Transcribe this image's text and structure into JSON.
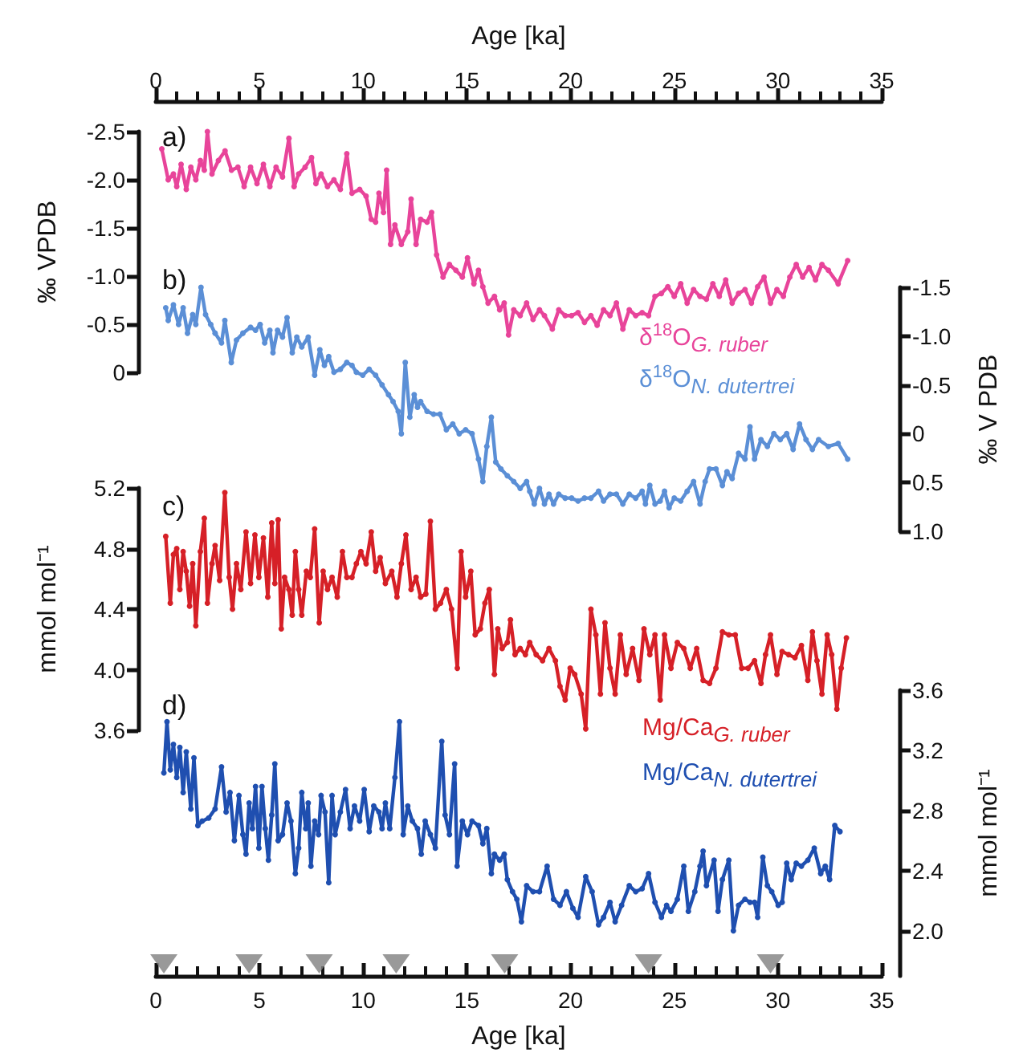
{
  "chart_data": [
    {
      "type": "line",
      "xlabel": "Age [ka]",
      "xlim": [
        0,
        35
      ],
      "xticks": [
        0,
        5,
        10,
        15,
        20,
        25,
        30,
        35
      ],
      "ylabel": "‰ VPDB",
      "ylim": [
        0,
        -2.5
      ],
      "yticks": [
        -2.5,
        {
          "value": -2,
          "label": "-2.0"
        },
        -1.5,
        {
          "value": -1,
          "label": "-1.0"
        },
        -0.5,
        0
      ],
      "annotations": [
        "a)"
      ],
      "marker": "circle",
      "line_style": "solid",
      "series": [
        {
          "name": "δ$^{18}$O$_{G. ruber}$",
          "color": "#e8449a",
          "x": [
            0.29,
            0.6,
            0.85,
            1.01,
            1.22,
            1.47,
            1.69,
            1.93,
            2.15,
            2.34,
            2.49,
            2.71,
            3.02,
            3.34,
            3.65,
            3.96,
            4.26,
            4.57,
            4.88,
            5.19,
            5.5,
            5.8,
            6.11,
            6.42,
            6.67,
            6.89,
            7.2,
            7.51,
            7.72,
            7.97,
            8.28,
            8.59,
            8.9,
            9.21,
            9.46,
            9.83,
            10.14,
            10.39,
            10.6,
            10.76,
            10.98,
            11.13,
            11.32,
            11.53,
            11.84,
            12.15,
            12.31,
            12.55,
            12.77,
            13.08,
            13.3,
            13.54,
            13.85,
            14.16,
            14.47,
            14.78,
            15.03,
            15.34,
            15.56,
            15.77,
            16.02,
            16.33,
            16.58,
            16.8,
            17.01,
            17.26,
            17.57,
            17.88,
            18.19,
            18.5,
            18.74,
            19.12,
            19.43,
            19.74,
            20.05,
            20.36,
            20.67,
            20.98,
            21.28,
            21.59,
            21.9,
            22.21,
            22.52,
            22.83,
            23.14,
            23.45,
            23.76,
            24.07,
            24.38,
            24.69,
            25.0,
            25.31,
            25.62,
            25.93,
            26.24,
            26.55,
            26.86,
            27.17,
            27.48,
            27.79,
            28.1,
            28.41,
            28.72,
            29.02,
            29.33,
            29.64,
            29.95,
            30.26,
            30.57,
            30.88,
            31.19,
            31.5,
            31.81,
            32.12,
            32.43,
            32.9,
            33.36
          ],
          "values": [
            -2.32,
            -2.0,
            -2.06,
            -1.93,
            -2.16,
            -1.9,
            -2.13,
            -2.0,
            -2.2,
            -2.1,
            -2.5,
            -2.06,
            -2.2,
            -2.3,
            -2.1,
            -2.13,
            -1.93,
            -2.13,
            -1.96,
            -2.16,
            -1.93,
            -2.13,
            -2.03,
            -2.43,
            -1.93,
            -2.06,
            -2.13,
            -2.23,
            -1.96,
            -2.06,
            -1.93,
            -2.0,
            -1.9,
            -2.27,
            -1.86,
            -1.9,
            -1.83,
            -1.59,
            -1.56,
            -1.86,
            -1.66,
            -2.1,
            -1.33,
            -1.53,
            -1.33,
            -1.46,
            -1.8,
            -1.33,
            -1.59,
            -1.56,
            -1.66,
            -1.22,
            -0.99,
            -1.12,
            -1.06,
            -0.99,
            -1.19,
            -0.92,
            -1.06,
            -0.89,
            -0.72,
            -0.79,
            -0.65,
            -0.72,
            -0.39,
            -0.65,
            -0.59,
            -0.72,
            -0.55,
            -0.65,
            -0.59,
            -0.45,
            -0.65,
            -0.59,
            -0.59,
            -0.62,
            -0.52,
            -0.59,
            -0.49,
            -0.65,
            -0.59,
            -0.72,
            -0.45,
            -0.65,
            -0.59,
            -0.62,
            -0.59,
            -0.79,
            -0.82,
            -0.89,
            -0.79,
            -0.92,
            -0.72,
            -0.86,
            -0.79,
            -0.76,
            -0.92,
            -0.79,
            -0.96,
            -0.72,
            -0.82,
            -0.86,
            -0.72,
            -0.89,
            -0.99,
            -0.72,
            -0.86,
            -0.79,
            -0.99,
            -1.12,
            -0.99,
            -1.09,
            -0.96,
            -1.12,
            -1.06,
            -0.92,
            -1.16
          ]
        }
      ]
    },
    {
      "type": "line",
      "xlim": [
        0,
        35
      ],
      "tick_labels": "y",
      "ylabel": "‰ V PDB",
      "ylim": [
        1,
        -1.5
      ],
      "yticks": [
        -1.5,
        {
          "value": -1,
          "label": "-1.0"
        },
        -0.5,
        0,
        0.5,
        {
          "value": 1,
          "label": "1.0"
        }
      ],
      "annotations": [
        "b)"
      ],
      "marker": "circle",
      "line_style": "solid",
      "series": [
        {
          "name": "δ$^{18}$O$_{N. dutertrei}$",
          "color": "#5b8fd6",
          "x": [
            0.48,
            0.6,
            0.85,
            1.1,
            1.32,
            1.53,
            1.78,
            1.93,
            2.18,
            2.4,
            2.65,
            2.86,
            3.17,
            3.33,
            3.64,
            3.89,
            4.2,
            4.57,
            4.81,
            5.03,
            5.25,
            5.5,
            5.65,
            5.87,
            6.11,
            6.33,
            6.58,
            6.8,
            7.04,
            7.35,
            7.66,
            7.91,
            8.13,
            8.34,
            8.59,
            8.9,
            9.21,
            9.46,
            9.67,
            9.98,
            10.29,
            10.6,
            10.91,
            11.22,
            11.44,
            11.69,
            11.84,
            12.03,
            12.25,
            12.46,
            12.62,
            12.77,
            13.08,
            13.39,
            13.7,
            14.01,
            14.32,
            14.63,
            14.94,
            15.25,
            15.56,
            15.77,
            15.96,
            16.18,
            16.39,
            16.64,
            16.95,
            17.26,
            17.57,
            17.88,
            18.03,
            18.25,
            18.5,
            18.74,
            18.96,
            19.18,
            19.43,
            19.74,
            20.05,
            20.36,
            20.67,
            20.98,
            21.35,
            21.59,
            21.9,
            22.21,
            22.52,
            22.83,
            23.14,
            23.45,
            23.61,
            23.82,
            24.07,
            24.32,
            24.53,
            24.75,
            25.0,
            25.31,
            25.62,
            25.93,
            26.24,
            26.49,
            26.7,
            27.01,
            27.32,
            27.54,
            27.79,
            28.1,
            28.41,
            28.65,
            28.87,
            29.18,
            29.49,
            29.8,
            30.11,
            30.42,
            30.73,
            31.04,
            31.35,
            31.66,
            31.96,
            32.43,
            32.9,
            33.36
          ],
          "values": [
            -1.29,
            -1.16,
            -1.32,
            -1.12,
            -1.29,
            -1.03,
            -1.22,
            -1.12,
            -1.5,
            -1.22,
            -1.12,
            -1.03,
            -0.93,
            -1.16,
            -0.73,
            -0.96,
            -1.03,
            -1.09,
            -1.06,
            -1.12,
            -0.93,
            -1.06,
            -0.83,
            -1.06,
            -0.99,
            -1.19,
            -0.83,
            -0.99,
            -0.89,
            -0.99,
            -0.6,
            -0.86,
            -0.7,
            -0.79,
            -0.63,
            -0.66,
            -0.73,
            -0.7,
            -0.63,
            -0.6,
            -0.66,
            -0.6,
            -0.5,
            -0.4,
            -0.33,
            -0.23,
            0.0,
            -0.73,
            -0.17,
            -0.4,
            -0.27,
            -0.33,
            -0.23,
            -0.2,
            -0.2,
            -0.04,
            -0.1,
            0.0,
            -0.04,
            0.0,
            0.26,
            0.49,
            0.13,
            -0.17,
            0.29,
            0.36,
            0.43,
            0.49,
            0.56,
            0.49,
            0.59,
            0.72,
            0.56,
            0.72,
            0.62,
            0.72,
            0.62,
            0.66,
            0.66,
            0.69,
            0.66,
            0.66,
            0.59,
            0.69,
            0.62,
            0.62,
            0.72,
            0.62,
            0.66,
            0.59,
            0.72,
            0.53,
            0.72,
            0.69,
            0.59,
            0.76,
            0.66,
            0.69,
            0.59,
            0.49,
            0.72,
            0.49,
            0.36,
            0.36,
            0.53,
            0.39,
            0.46,
            0.2,
            0.26,
            -0.07,
            0.26,
            0.06,
            0.13,
            0.0,
            0.06,
            0.0,
            0.16,
            -0.1,
            0.06,
            0.16,
            0.06,
            0.13,
            0.1,
            0.26
          ]
        }
      ]
    },
    {
      "type": "line",
      "xlim": [
        0,
        35
      ],
      "tick_labels": "y",
      "ylabel": "mmol mol⁻¹",
      "ylim": [
        3.6,
        5.2
      ],
      "yticks": [
        3.6,
        {
          "value": 4,
          "label": "4.0"
        },
        4.4,
        4.8,
        5.2
      ],
      "annotations": [
        "c)"
      ],
      "marker": "circle",
      "line_style": "solid",
      "series": [
        {
          "name": "Mg/Ca$_{G. ruber}$",
          "color": "#d62027",
          "x": [
            0.48,
            0.7,
            0.85,
            1.01,
            1.16,
            1.32,
            1.47,
            1.63,
            1.78,
            1.93,
            2.15,
            2.34,
            2.49,
            2.71,
            2.86,
            3.08,
            3.33,
            3.54,
            3.7,
            3.89,
            4.1,
            4.35,
            4.57,
            4.78,
            4.97,
            5.19,
            5.4,
            5.59,
            5.74,
            5.9,
            6.05,
            6.21,
            6.42,
            6.58,
            6.73,
            6.89,
            7.04,
            7.26,
            7.45,
            7.66,
            7.88,
            8.07,
            8.28,
            8.5,
            8.75,
            9.0,
            9.21,
            9.46,
            9.67,
            9.89,
            10.14,
            10.39,
            10.6,
            10.82,
            11.07,
            11.38,
            11.63,
            11.84,
            12.06,
            12.31,
            12.55,
            12.77,
            13.02,
            13.24,
            13.48,
            13.73,
            14.01,
            14.26,
            14.54,
            14.72,
            14.94,
            15.19,
            15.4,
            15.65,
            15.87,
            16.08,
            16.33,
            16.49,
            16.7,
            16.95,
            17.1,
            17.32,
            17.57,
            17.82,
            18.03,
            18.34,
            18.65,
            18.96,
            19.27,
            19.49,
            19.74,
            19.98,
            20.2,
            20.51,
            20.73,
            20.98,
            21.22,
            21.44,
            21.66,
            21.9,
            22.15,
            22.4,
            22.68,
            22.99,
            23.3,
            23.54,
            23.82,
            24.07,
            24.32,
            24.53,
            24.84,
            25.15,
            25.46,
            25.77,
            26.08,
            26.39,
            26.7,
            27.01,
            27.32,
            27.63,
            27.94,
            28.25,
            28.56,
            28.87,
            29.18,
            29.4,
            29.64,
            29.95,
            30.2,
            30.51,
            30.82,
            31.13,
            31.44,
            31.66,
            31.88,
            32.12,
            32.37,
            32.59,
            32.84,
            33.05,
            33.3
          ],
          "values": [
            4.88,
            4.44,
            4.76,
            4.8,
            4.53,
            4.78,
            4.65,
            4.42,
            4.7,
            4.29,
            4.78,
            5.0,
            4.44,
            4.7,
            4.82,
            4.59,
            5.17,
            4.61,
            4.4,
            4.7,
            4.53,
            4.91,
            4.57,
            4.89,
            4.61,
            4.87,
            4.48,
            4.97,
            4.57,
            4.99,
            4.27,
            4.61,
            4.53,
            4.36,
            4.78,
            4.53,
            4.36,
            4.65,
            4.61,
            4.93,
            4.31,
            4.65,
            4.53,
            4.61,
            4.48,
            4.78,
            4.61,
            4.61,
            4.7,
            4.78,
            4.7,
            4.91,
            4.65,
            4.74,
            4.57,
            4.65,
            4.48,
            4.7,
            4.89,
            4.53,
            4.61,
            4.48,
            4.5,
            4.98,
            4.4,
            4.44,
            4.53,
            4.4,
            4.01,
            4.78,
            4.48,
            4.65,
            4.23,
            4.27,
            4.44,
            4.53,
            3.97,
            4.27,
            4.14,
            4.18,
            4.33,
            4.1,
            4.14,
            4.1,
            4.18,
            4.1,
            4.06,
            4.14,
            4.06,
            3.89,
            3.8,
            4.01,
            3.97,
            3.84,
            3.61,
            4.4,
            4.23,
            3.84,
            4.31,
            4.01,
            3.84,
            4.23,
            3.97,
            4.14,
            3.93,
            4.27,
            4.1,
            4.23,
            3.8,
            4.23,
            4.01,
            4.18,
            4.14,
            4.01,
            4.14,
            3.93,
            3.91,
            4.01,
            4.25,
            4.23,
            4.23,
            4.01,
            4.01,
            4.06,
            3.91,
            4.1,
            4.23,
            3.97,
            4.12,
            4.1,
            4.08,
            4.16,
            3.93,
            4.25,
            4.06,
            3.84,
            4.23,
            4.1,
            3.74,
            4.01,
            4.21
          ]
        }
      ]
    },
    {
      "type": "line",
      "xlabel": "Age [ka]",
      "xlim": [
        0,
        35
      ],
      "xticks": [
        0,
        5,
        10,
        15,
        20,
        25,
        30,
        35
      ],
      "ylabel": "mmol mol⁻¹",
      "ylim": [
        1.7,
        3.6
      ],
      "yticks": [
        {
          "value": 2,
          "label": "2.0"
        },
        2.4,
        2.8,
        3.2,
        3.6
      ],
      "annotations": [
        "d)"
      ],
      "marker": "circle",
      "line_style": "solid",
      "series": [
        {
          "name": "Mg/Ca$_{N. dutertrei}$",
          "color": "#1f4fb0",
          "x": [
            0.39,
            0.54,
            0.7,
            0.85,
            1.01,
            1.16,
            1.32,
            1.47,
            1.69,
            1.84,
            2.03,
            2.24,
            2.55,
            2.86,
            3.17,
            3.39,
            3.58,
            3.79,
            4.01,
            4.2,
            4.35,
            4.5,
            4.66,
            4.81,
            4.97,
            5.12,
            5.28,
            5.43,
            5.59,
            5.74,
            5.9,
            6.11,
            6.33,
            6.52,
            6.73,
            6.89,
            7.04,
            7.23,
            7.35,
            7.48,
            7.66,
            7.85,
            7.97,
            8.16,
            8.34,
            8.5,
            8.65,
            8.9,
            9.15,
            9.37,
            9.58,
            9.83,
            10.05,
            10.29,
            10.51,
            10.76,
            10.91,
            11.07,
            11.28,
            11.53,
            11.75,
            11.93,
            12.15,
            12.37,
            12.62,
            12.8,
            12.99,
            13.24,
            13.48,
            13.79,
            13.95,
            14.16,
            14.41,
            14.53,
            14.78,
            15.03,
            15.25,
            15.56,
            15.77,
            15.96,
            16.18,
            16.33,
            16.58,
            16.8,
            16.95,
            17.2,
            17.41,
            17.63,
            17.88,
            18.19,
            18.5,
            18.87,
            19.18,
            19.49,
            19.8,
            20.11,
            20.36,
            20.73,
            21.04,
            21.35,
            21.59,
            21.9,
            22.15,
            22.46,
            22.83,
            23.14,
            23.45,
            23.76,
            24.07,
            24.38,
            24.63,
            24.84,
            25.15,
            25.46,
            25.68,
            25.99,
            26.24,
            26.39,
            26.55,
            26.92,
            27.11,
            27.32,
            27.63,
            27.85,
            28.1,
            28.41,
            28.65,
            28.87,
            29.02,
            29.27,
            29.49,
            29.7,
            30.01,
            30.2,
            30.42,
            30.64,
            30.88,
            31.13,
            31.44,
            31.75,
            32.06,
            32.28,
            32.49,
            32.74,
            32.99
          ],
          "values": [
            3.05,
            3.39,
            3.07,
            3.24,
            3.02,
            3.22,
            2.92,
            3.19,
            2.81,
            3.15,
            2.7,
            2.73,
            2.75,
            2.81,
            3.09,
            2.79,
            2.92,
            2.6,
            2.9,
            2.64,
            2.51,
            2.85,
            2.68,
            2.96,
            2.55,
            2.96,
            2.68,
            2.47,
            2.77,
            3.11,
            2.6,
            2.64,
            2.85,
            2.73,
            2.38,
            2.55,
            2.92,
            2.68,
            2.85,
            2.43,
            2.73,
            2.64,
            2.9,
            2.79,
            2.32,
            2.9,
            2.64,
            2.79,
            2.94,
            2.68,
            2.83,
            2.73,
            2.94,
            2.66,
            2.83,
            2.79,
            2.68,
            2.85,
            2.68,
            3.02,
            3.39,
            2.64,
            2.83,
            2.73,
            2.68,
            2.51,
            2.73,
            2.64,
            2.55,
            3.26,
            2.77,
            2.64,
            3.11,
            2.43,
            2.73,
            2.64,
            2.73,
            2.7,
            2.58,
            2.68,
            2.38,
            2.51,
            2.47,
            2.51,
            2.34,
            2.26,
            2.21,
            2.06,
            2.3,
            2.26,
            2.26,
            2.43,
            2.21,
            2.17,
            2.26,
            2.15,
            2.09,
            2.36,
            2.26,
            2.04,
            2.09,
            2.19,
            2.06,
            2.17,
            2.3,
            2.26,
            2.28,
            2.38,
            2.19,
            2.09,
            2.17,
            2.13,
            2.21,
            2.43,
            2.13,
            2.26,
            2.43,
            2.53,
            2.3,
            2.47,
            2.13,
            2.34,
            2.47,
            2.0,
            2.17,
            2.21,
            2.19,
            2.19,
            2.09,
            2.49,
            2.3,
            2.26,
            2.17,
            2.19,
            2.45,
            2.34,
            2.45,
            2.43,
            2.47,
            2.55,
            2.38,
            2.43,
            2.34,
            2.7,
            2.66
          ]
        },
        {
          "type": "scatter",
          "marker": "triangle",
          "color": "#808080",
          "x": [
            0.39,
            4.5,
            7.88,
            11.59,
            16.82,
            23.76,
            29.64
          ],
          "values": [
            1.78,
            1.78,
            1.78,
            1.78,
            1.78,
            1.78,
            1.78
          ]
        }
      ]
    }
  ]
}
